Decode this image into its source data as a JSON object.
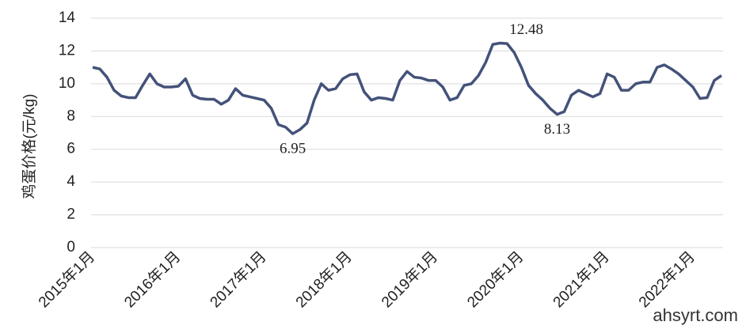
{
  "chart_data": {
    "type": "line",
    "y_label": "鸡蛋价格(元/kg)",
    "watermark": "ahsyrt.com",
    "categories": [
      "2015年1月",
      null,
      null,
      null,
      null,
      null,
      null,
      null,
      null,
      null,
      null,
      null,
      "2016年1月",
      null,
      null,
      null,
      null,
      null,
      null,
      null,
      null,
      null,
      null,
      null,
      "2017年1月",
      null,
      null,
      null,
      null,
      null,
      null,
      null,
      null,
      null,
      null,
      null,
      "2018年1月",
      null,
      null,
      null,
      null,
      null,
      null,
      null,
      null,
      null,
      null,
      null,
      "2019年1月",
      null,
      null,
      null,
      null,
      null,
      null,
      null,
      null,
      null,
      null,
      null,
      "2020年1月",
      null,
      null,
      null,
      null,
      null,
      null,
      null,
      null,
      null,
      null,
      null,
      "2021年1月",
      null,
      null,
      null,
      null,
      null,
      null,
      null,
      null,
      null,
      null,
      null,
      "2022年1月",
      null,
      null,
      null,
      null
    ],
    "series": [
      {
        "color": "#44527a",
        "values": [
          11.0,
          10.9,
          10.4,
          9.6,
          9.25,
          9.15,
          9.15,
          9.9,
          10.6,
          10.0,
          9.8,
          9.8,
          9.85,
          10.3,
          9.3,
          9.1,
          9.05,
          9.05,
          8.75,
          9.0,
          9.7,
          9.3,
          9.2,
          9.1,
          9.0,
          8.5,
          7.5,
          7.35,
          6.95,
          7.2,
          7.6,
          9.0,
          10.0,
          9.6,
          9.7,
          10.3,
          10.55,
          10.6,
          9.5,
          9.0,
          9.15,
          9.1,
          9.0,
          10.2,
          10.75,
          10.4,
          10.35,
          10.2,
          10.2,
          9.8,
          9.0,
          9.15,
          9.9,
          10.0,
          10.5,
          11.3,
          12.4,
          12.48,
          12.45,
          11.9,
          11.0,
          9.9,
          9.4,
          9.0,
          8.5,
          8.13,
          8.3,
          9.3,
          9.6,
          9.4,
          9.2,
          9.4,
          10.6,
          10.4,
          9.6,
          9.6,
          10.0,
          10.1,
          10.1,
          11.0,
          11.15,
          10.9,
          10.6,
          10.2,
          9.8,
          9.1,
          9.15,
          10.2,
          10.5
        ],
        "value_labels": [
          null,
          null,
          null,
          null,
          null,
          null,
          null,
          null,
          null,
          null,
          null,
          null,
          null,
          null,
          null,
          null,
          null,
          null,
          null,
          null,
          null,
          null,
          null,
          null,
          null,
          null,
          null,
          null,
          "6.95",
          null,
          null,
          null,
          null,
          null,
          null,
          null,
          null,
          null,
          null,
          null,
          null,
          null,
          null,
          null,
          null,
          null,
          null,
          null,
          null,
          null,
          null,
          null,
          null,
          null,
          null,
          null,
          null,
          "12.48",
          null,
          null,
          null,
          null,
          null,
          null,
          null,
          "8.13",
          null,
          null,
          null,
          null,
          null,
          null,
          null,
          null,
          null,
          null,
          null,
          null,
          null,
          null,
          null,
          null,
          null,
          null,
          null,
          null,
          null,
          null,
          null
        ]
      }
    ],
    "ylim": [
      0,
      14
    ],
    "yticks": [
      0,
      2,
      4,
      6,
      8,
      10,
      12,
      14
    ],
    "grid": true
  }
}
